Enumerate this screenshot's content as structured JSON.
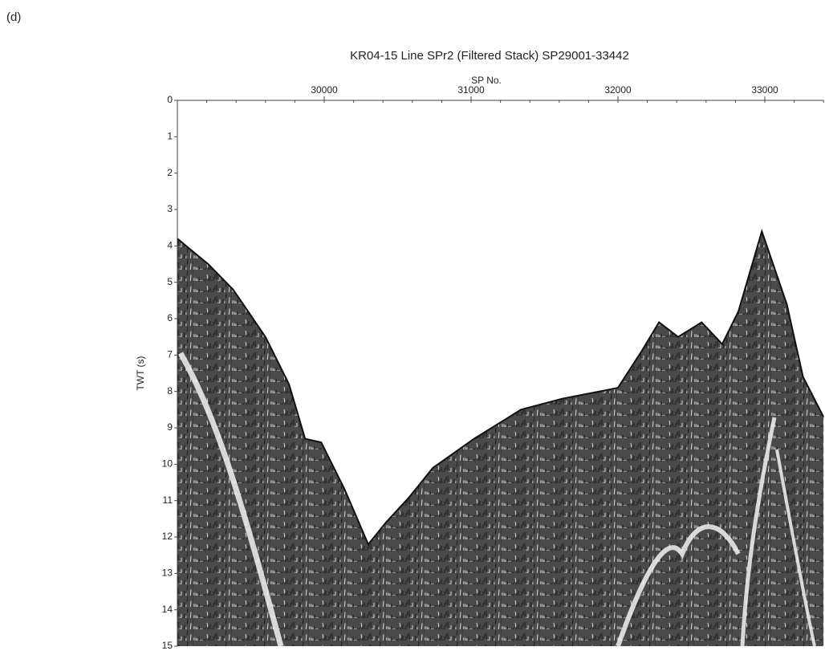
{
  "chart_data": {
    "type": "seismic",
    "panel_label": "(d)",
    "title": "KR04-15  Line SPr2 (Filtered Stack) SP29001-33442",
    "xlabel": "SP No.",
    "ylabel": "TWT (s)",
    "x_axis_position": "top",
    "invert_y": true,
    "xlim": [
      29000,
      33400
    ],
    "xticks": [
      30000,
      31000,
      32000,
      33000
    ],
    "ylim": [
      0,
      15
    ],
    "yticks": [
      0,
      1,
      2,
      3,
      4,
      5,
      6,
      7,
      8,
      9,
      10,
      11,
      12,
      13,
      14,
      15
    ],
    "color": "#4a4a4a",
    "x": [
      29000,
      29210,
      29380,
      29600,
      29760,
      29870,
      29980,
      30140,
      30300,
      30420,
      30580,
      30740,
      31020,
      31340,
      31620,
      32000,
      32160,
      32280,
      32410,
      32570,
      32710,
      32820,
      32980,
      33150,
      33260,
      33400
    ],
    "values": [
      3.8,
      4.5,
      5.2,
      6.5,
      7.8,
      9.3,
      9.4,
      10.7,
      12.2,
      11.6,
      10.9,
      10.1,
      9.3,
      8.5,
      8.2,
      7.9,
      6.9,
      6.1,
      6.5,
      6.1,
      6.7,
      5.8,
      3.6,
      5.6,
      7.6,
      8.7
    ]
  }
}
